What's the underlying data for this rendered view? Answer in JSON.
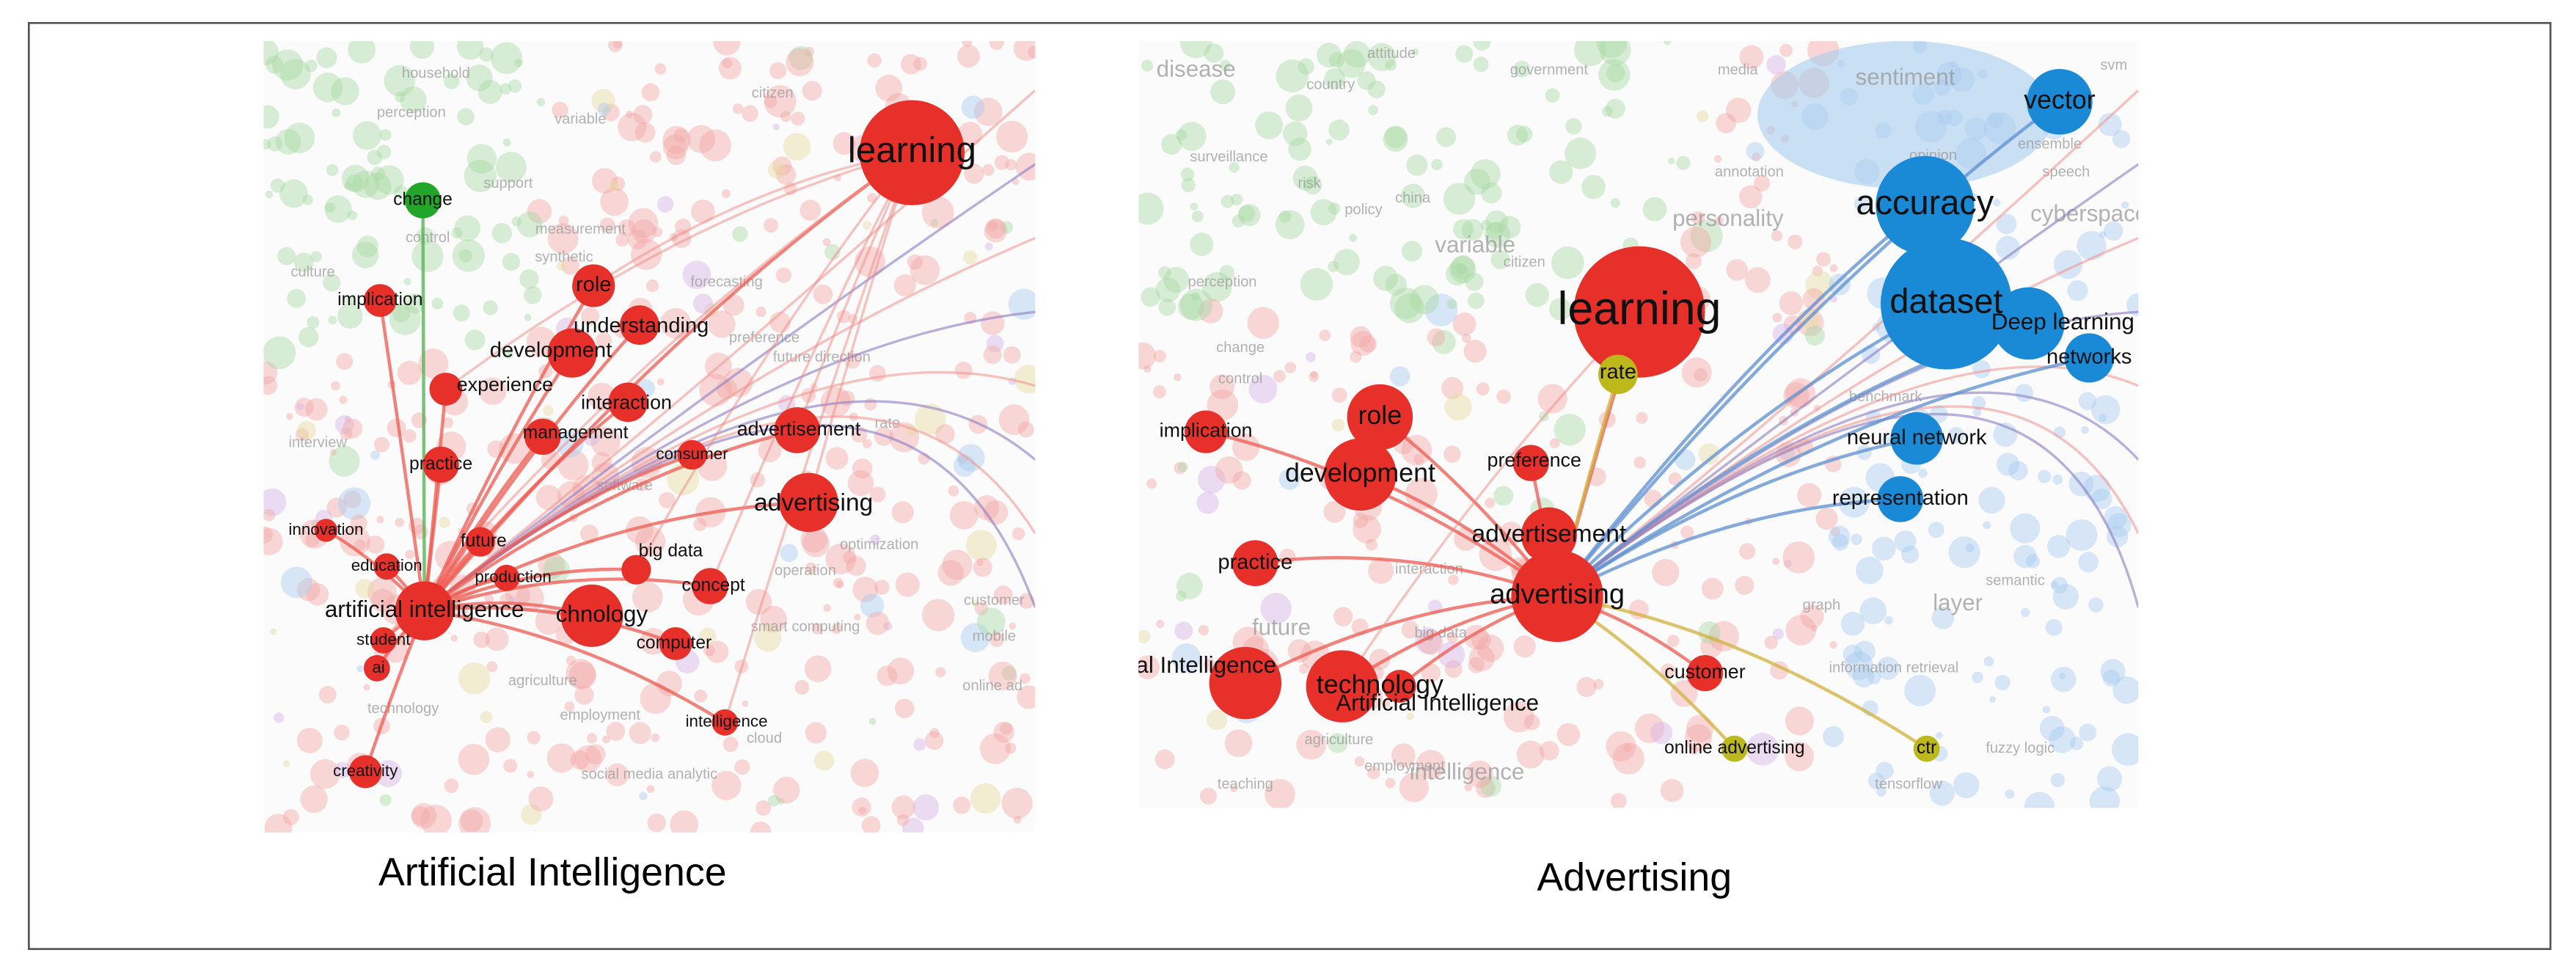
{
  "panels": [
    {
      "caption": "Artificial Intelligence",
      "nodes": [
        "learning",
        "change",
        "implication",
        "role",
        "understanding",
        "development",
        "experience",
        "interaction",
        "management",
        "advertisement",
        "practice",
        "consumer",
        "advertising",
        "innovation",
        "future",
        "big data",
        "education",
        "production",
        "concept",
        "artificial intelligence",
        "chnology",
        "student",
        "computer",
        "ai",
        "intelligence",
        "creativity"
      ],
      "background_labels": [
        "perception",
        "household",
        "variable",
        "citizen",
        "support",
        "control",
        "measurement",
        "culture",
        "synthetic",
        "forecasting",
        "preference",
        "future direction",
        "interview",
        "software",
        "optimization",
        "operation",
        "customer",
        "smart computing",
        "agriculture",
        "employment",
        "technology",
        "social media analytic",
        "cloud",
        "rate",
        "mobile",
        "online ad"
      ]
    },
    {
      "caption": "Advertising",
      "nodes": [
        "vector",
        "accuracy",
        "dataset",
        "Deep learning",
        "networks",
        "learning",
        "rate",
        "role",
        "implication",
        "neural network",
        "preference",
        "development",
        "representation",
        "advertisement",
        "practice",
        "advertising",
        "customer",
        "Artificial Intelligence",
        "technology",
        "Artificial Intelligence",
        "online advertising",
        "ctr"
      ],
      "background_labels": [
        "disease",
        "attitude",
        "country",
        "government",
        "media",
        "sentiment",
        "svm",
        "opinion",
        "speech",
        "ensemble",
        "cyberspace",
        "surveillance",
        "risk",
        "policy",
        "china",
        "variable",
        "citizen",
        "perception",
        "change",
        "control",
        "future",
        "big data",
        "interaction",
        "graph",
        "semantic",
        "layer",
        "information retrieval",
        "teaching",
        "agriculture",
        "employment",
        "intelligence",
        "tensorflow",
        "fuzzy logic",
        "benchmark",
        "annotation",
        "personality"
      ]
    }
  ]
}
